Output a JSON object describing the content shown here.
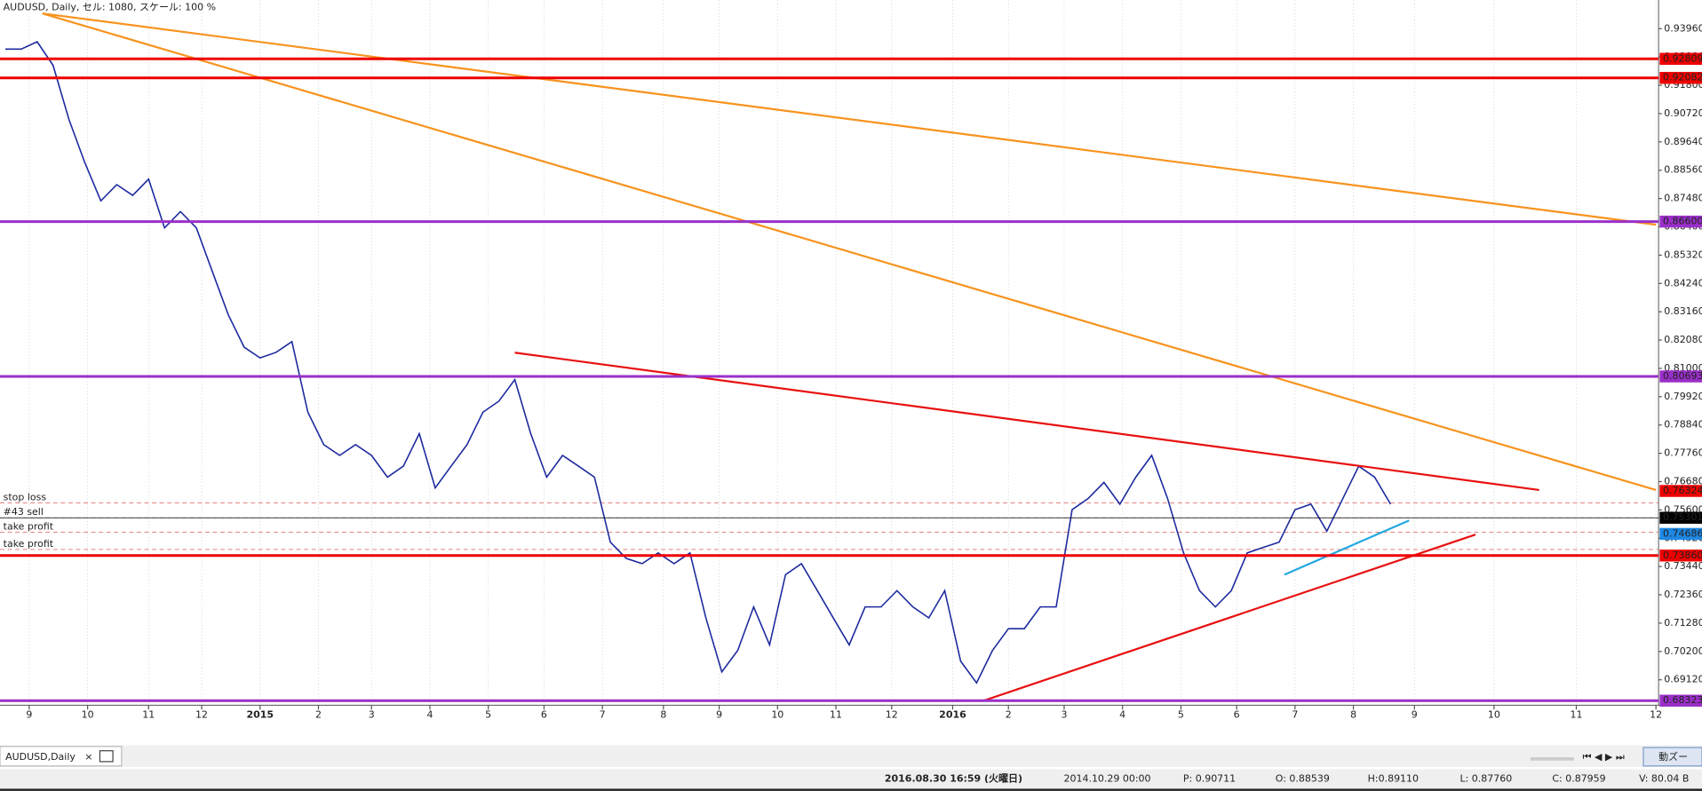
{
  "chart_data": {
    "type": "line",
    "title": "AUDUSD, Daily, セル: 1080, スケール: 100 %",
    "tab": "AUDUSD,Daily",
    "zoom_button": "動ズー",
    "grid": true,
    "xlim": [
      0,
      625
    ],
    "ylim": [
      0.6815,
      0.9505
    ],
    "xticks": [
      {
        "value": 11,
        "label": "9"
      },
      {
        "value": 33,
        "label": "10"
      },
      {
        "value": 56,
        "label": "11"
      },
      {
        "value": 76,
        "label": "12"
      },
      {
        "value": 98,
        "label": "2015"
      },
      {
        "value": 120,
        "label": "2"
      },
      {
        "value": 140,
        "label": "3"
      },
      {
        "value": 162,
        "label": "4"
      },
      {
        "value": 184,
        "label": "5"
      },
      {
        "value": 205,
        "label": "6"
      },
      {
        "value": 227,
        "label": "7"
      },
      {
        "value": 250,
        "label": "8"
      },
      {
        "value": 271,
        "label": "9"
      },
      {
        "value": 293,
        "label": "10"
      },
      {
        "value": 315,
        "label": "11"
      },
      {
        "value": 336,
        "label": "12"
      },
      {
        "value": 359,
        "label": "2016"
      },
      {
        "value": 380,
        "label": "2"
      },
      {
        "value": 401,
        "label": "3"
      },
      {
        "value": 423,
        "label": "4"
      },
      {
        "value": 445,
        "label": "5"
      },
      {
        "value": 466,
        "label": "6"
      },
      {
        "value": 488,
        "label": "7"
      },
      {
        "value": 510,
        "label": "8"
      },
      {
        "value": 533,
        "label": "9"
      },
      {
        "value": 563,
        "label": "10"
      },
      {
        "value": 594,
        "label": "11"
      },
      {
        "value": 624,
        "label": "12"
      }
    ],
    "yticks": [
      {
        "value": 0.9396,
        "label": "0.93960"
      },
      {
        "value": 0.9288,
        "label": "0.92880"
      },
      {
        "value": 0.918,
        "label": "0.91800"
      },
      {
        "value": 0.9072,
        "label": "0.90720"
      },
      {
        "value": 0.8964,
        "label": "0.89640"
      },
      {
        "value": 0.8856,
        "label": "0.88560"
      },
      {
        "value": 0.8748,
        "label": "0.87480"
      },
      {
        "value": 0.864,
        "label": "0.86400"
      },
      {
        "value": 0.8532,
        "label": "0.85320"
      },
      {
        "value": 0.8424,
        "label": "0.84240"
      },
      {
        "value": 0.8316,
        "label": "0.83160"
      },
      {
        "value": 0.8208,
        "label": "0.82080"
      },
      {
        "value": 0.81,
        "label": "0.81000"
      },
      {
        "value": 0.7992,
        "label": "0.79920"
      },
      {
        "value": 0.7884,
        "label": "0.78840"
      },
      {
        "value": 0.7776,
        "label": "0.77760"
      },
      {
        "value": 0.7668,
        "label": "0.76680"
      },
      {
        "value": 0.756,
        "label": "0.75600"
      },
      {
        "value": 0.7452,
        "label": "0.74520"
      },
      {
        "value": 0.7344,
        "label": "0.73440"
      },
      {
        "value": 0.7236,
        "label": "0.72360"
      },
      {
        "value": 0.7128,
        "label": "0.71280"
      },
      {
        "value": 0.702,
        "label": "0.70200"
      },
      {
        "value": 0.6912,
        "label": "0.69120"
      }
    ],
    "x": [
      2,
      8,
      14,
      20,
      26,
      32,
      38,
      44,
      50,
      56,
      62,
      68,
      74,
      80,
      86,
      92,
      98,
      104,
      110,
      116,
      122,
      128,
      134,
      140,
      146,
      152,
      158,
      164,
      170,
      176,
      182,
      188,
      194,
      200,
      206,
      212,
      218,
      224,
      230,
      236,
      242,
      248,
      254,
      260,
      266,
      272,
      278,
      284,
      290,
      296,
      302,
      308,
      314,
      320,
      326,
      332,
      338,
      344,
      350,
      356,
      362,
      368,
      374,
      380,
      386,
      392,
      398,
      404,
      410,
      416,
      422,
      428,
      434,
      440,
      446,
      452,
      458,
      464,
      470,
      476,
      482,
      488,
      494,
      500,
      506,
      512,
      518,
      524
    ],
    "series": [
      {
        "color": "#1c2a9e",
        "values": [
          0.9318,
          0.9318,
          0.9346,
          0.9256,
          0.9049,
          0.8884,
          0.8739,
          0.8801,
          0.876,
          0.8822,
          0.8636,
          0.8698,
          0.8636,
          0.847,
          0.8305,
          0.8181,
          0.814,
          0.8161,
          0.8202,
          0.7933,
          0.7809,
          0.7768,
          0.7809,
          0.7768,
          0.7685,
          0.7727,
          0.7851,
          0.7644,
          0.7727,
          0.7809,
          0.7933,
          0.7975,
          0.8057,
          0.7851,
          0.7685,
          0.7768,
          0.7727,
          0.7685,
          0.7437,
          0.7375,
          0.7355,
          0.7396,
          0.7355,
          0.7396,
          0.7148,
          0.6942,
          0.7024,
          0.719,
          0.7045,
          0.7313,
          0.7355,
          0.7252,
          0.7148,
          0.7045,
          0.719,
          0.719,
          0.7252,
          0.719,
          0.7148,
          0.7252,
          0.6983,
          0.69,
          0.7024,
          0.7107,
          0.7107,
          0.719,
          0.719,
          0.7561,
          0.7603,
          0.7665,
          0.7582,
          0.7685,
          0.7768,
          0.7603,
          0.7396,
          0.7252,
          0.719,
          0.7252,
          0.7396,
          0.7417,
          0.7437,
          0.7561,
          0.7582,
          0.7479,
          0.7603,
          0.7727,
          0.7685,
          0.7582
        ]
      }
    ],
    "levels": [
      {
        "value": 0.92809,
        "color": "#ee0000",
        "width": 2.5
      },
      {
        "value": 0.92082,
        "color": "#ee0000",
        "width": 2.5
      },
      {
        "value": 0.866,
        "label": "0.86600",
        "color": "#9a2fc8",
        "width": 2.5
      },
      {
        "value": 0.80693,
        "color": "#9a2fc8",
        "width": 2.5
      },
      {
        "value": 0.76324,
        "color": "#ee0000",
        "width": 0
      },
      {
        "value": 0.75301,
        "color": "#000000",
        "width": 0.6
      },
      {
        "value": 0.74686,
        "color": "#1e88e5",
        "width": 0
      },
      {
        "value": 0.7386,
        "label": "0.73860",
        "color": "#ee0000",
        "width": 2.5
      },
      {
        "value": 0.68323,
        "color": "#9a2fc8",
        "width": 2.5
      }
    ],
    "orders": [
      {
        "label": "stop loss",
        "value": 0.7587
      },
      {
        "label": "#43 sell",
        "value": 0.753
      },
      {
        "label": "take profit",
        "value": 0.7475
      },
      {
        "label": "take profit",
        "value": 0.7409
      }
    ],
    "trend_lines": [
      {
        "color": "#f7931e",
        "x": [
          16,
          624
        ],
        "values": [
          0.9454,
          0.8648
        ]
      },
      {
        "color": "#f7931e",
        "x": [
          16,
          624
        ],
        "values": [
          0.9454,
          0.7636
        ]
      },
      {
        "color": "#e81010",
        "x": [
          194,
          580
        ],
        "values": [
          0.816,
          0.7636
        ]
      },
      {
        "color": "#e81010",
        "x": [
          370,
          556
        ],
        "values": [
          0.683,
          0.7466
        ]
      },
      {
        "color": "#22a8e0",
        "x": [
          484,
          531
        ],
        "values": [
          0.7313,
          0.752
        ]
      }
    ],
    "status": [
      "2016.08.30 16:59 (火曜日)",
      "2014.10.29 00:00",
      "P: 0.90711",
      "O: 0.88539",
      "H:0.89110",
      "L: 0.87760",
      "C: 0.87959",
      "V: 80.04 B"
    ]
  }
}
